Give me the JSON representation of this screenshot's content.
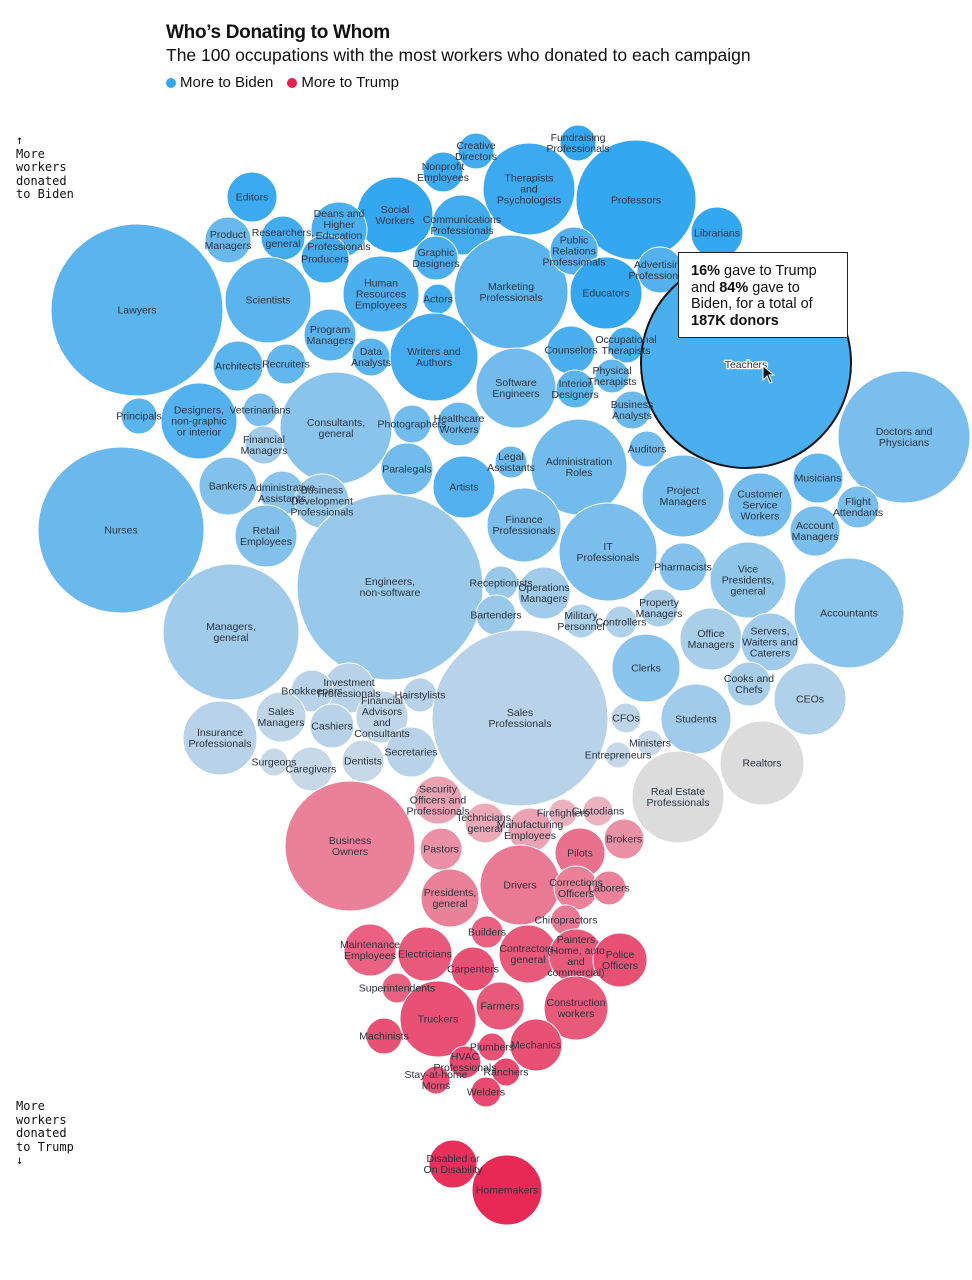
{
  "title": "Who’s Donating to Whom",
  "subtitle": "The 100 occupations with the most workers who donated to each campaign",
  "legend": {
    "biden_label": "More to Biden",
    "trump_label": "More to Trump",
    "biden_color": "#33a7f0",
    "trump_color": "#e8204f"
  },
  "axis": {
    "top_arrow": "↑",
    "top_label": "More\nworkers\ndonated\nto Biden",
    "bottom_label": "More\nworkers\ndonated\nto Trump",
    "bottom_arrow": "↓"
  },
  "tooltip": {
    "trump_pct": "16%",
    "trump_text": " gave to Trump",
    "and_text": "and ",
    "biden_pct": "84%",
    "biden_text": " gave to Biden, for a total of ",
    "total": "187K donors"
  },
  "chart_data": {
    "type": "bubble",
    "title": "Who’s Donating to Whom",
    "subtitle": "The 100 occupations with the most workers who donated to each campaign",
    "highlighted": "Teachers",
    "highlight_detail": {
      "trump_share": 16,
      "biden_share": 84,
      "total_donors": "187K"
    },
    "bubbles": [
      {
        "name": "Lawyers",
        "lean": "biden",
        "level": 0.75
      },
      {
        "name": "Nurses",
        "lean": "biden",
        "level": 0.65
      },
      {
        "name": "Teachers",
        "lean": "biden",
        "level": 0.85
      },
      {
        "name": "Professors",
        "lean": "biden",
        "level": 1.0
      },
      {
        "name": "Therapists and Psychologists",
        "lean": "biden",
        "level": 0.95
      },
      {
        "name": "Fundraising Professionals",
        "lean": "biden",
        "level": 1.0
      },
      {
        "name": "Creative Directors",
        "lean": "biden",
        "level": 0.9
      },
      {
        "name": "Nonprofit Employees",
        "lean": "biden",
        "level": 0.95
      },
      {
        "name": "Social Workers",
        "lean": "biden",
        "level": 1.0
      },
      {
        "name": "Editors",
        "lean": "biden",
        "level": 0.95
      },
      {
        "name": "Librarians",
        "lean": "biden",
        "level": 1.0
      },
      {
        "name": "Communications Professionals",
        "lean": "biden",
        "level": 0.9
      },
      {
        "name": "Deans and Higher Education Professionals",
        "lean": "biden",
        "level": 0.85
      },
      {
        "name": "Product Managers",
        "lean": "biden",
        "level": 0.65
      },
      {
        "name": "Researchers, general",
        "lean": "biden",
        "level": 0.9
      },
      {
        "name": "Producers",
        "lean": "biden",
        "level": 0.9
      },
      {
        "name": "Marketing Professionals",
        "lean": "biden",
        "level": 0.75
      },
      {
        "name": "Public Relations Professionals",
        "lean": "biden",
        "level": 0.8
      },
      {
        "name": "Educators",
        "lean": "biden",
        "level": 1.0
      },
      {
        "name": "Advertising Professionals",
        "lean": "biden",
        "level": 0.8
      },
      {
        "name": "Human Resources Employees",
        "lean": "biden",
        "level": 0.85
      },
      {
        "name": "Graphic Designers",
        "lean": "biden",
        "level": 0.85
      },
      {
        "name": "Scientists",
        "lean": "biden",
        "level": 0.75
      },
      {
        "name": "Actors",
        "lean": "biden",
        "level": 0.9
      },
      {
        "name": "Program Managers",
        "lean": "biden",
        "level": 0.75
      },
      {
        "name": "Writers and Authors",
        "lean": "biden",
        "level": 0.9
      },
      {
        "name": "Counselors",
        "lean": "biden",
        "level": 0.85
      },
      {
        "name": "Occupational Therapists",
        "lean": "biden",
        "level": 0.85
      },
      {
        "name": "Architects",
        "lean": "biden",
        "level": 0.75
      },
      {
        "name": "Recruiters",
        "lean": "biden",
        "level": 0.7
      },
      {
        "name": "Data Analysts",
        "lean": "biden",
        "level": 0.75
      },
      {
        "name": "Software Engineers",
        "lean": "biden",
        "level": 0.6
      },
      {
        "name": "Interior Designers",
        "lean": "biden",
        "level": 0.75
      },
      {
        "name": "Physical Therapists",
        "lean": "biden",
        "level": 0.7
      },
      {
        "name": "Principals",
        "lean": "biden",
        "level": 0.75
      },
      {
        "name": "Designers, non-graphic or interior",
        "lean": "biden",
        "level": 0.8
      },
      {
        "name": "Veterinarians",
        "lean": "biden",
        "level": 0.55
      },
      {
        "name": "Consultants, general",
        "lean": "biden",
        "level": 0.45
      },
      {
        "name": "Photographers",
        "lean": "biden",
        "level": 0.6
      },
      {
        "name": "Healthcare Workers",
        "lean": "biden",
        "level": 0.65
      },
      {
        "name": "Business Analysts",
        "lean": "biden",
        "level": 0.65
      },
      {
        "name": "Doctors and Physicians",
        "lean": "biden",
        "level": 0.55
      },
      {
        "name": "Financial Managers",
        "lean": "biden",
        "level": 0.3
      },
      {
        "name": "Legal Assistants",
        "lean": "biden",
        "level": 0.65
      },
      {
        "name": "Administration Roles",
        "lean": "biden",
        "level": 0.6
      },
      {
        "name": "Auditors",
        "lean": "biden",
        "level": 0.6
      },
      {
        "name": "Bankers",
        "lean": "biden",
        "level": 0.5
      },
      {
        "name": "Administrative Assistants",
        "lean": "biden",
        "level": 0.45
      },
      {
        "name": "Business Development Professionals",
        "lean": "biden",
        "level": 0.35
      },
      {
        "name": "Paralegals",
        "lean": "biden",
        "level": 0.6
      },
      {
        "name": "Artists",
        "lean": "biden",
        "level": 0.8
      },
      {
        "name": "Project Managers",
        "lean": "biden",
        "level": 0.6
      },
      {
        "name": "Customer Service Workers",
        "lean": "biden",
        "level": 0.6
      },
      {
        "name": "Musicians",
        "lean": "biden",
        "level": 0.7
      },
      {
        "name": "Flight Attendants",
        "lean": "biden",
        "level": 0.55
      },
      {
        "name": "Account Managers",
        "lean": "biden",
        "level": 0.55
      },
      {
        "name": "Retail Employees",
        "lean": "biden",
        "level": 0.5
      },
      {
        "name": "Finance Professionals",
        "lean": "biden",
        "level": 0.55
      },
      {
        "name": "IT Professionals",
        "lean": "biden",
        "level": 0.55
      },
      {
        "name": "Pharmacists",
        "lean": "biden",
        "level": 0.5
      },
      {
        "name": "Vice Presidents, general",
        "lean": "biden",
        "level": 0.4
      },
      {
        "name": "Engineers, non-software",
        "lean": "biden",
        "level": 0.35
      },
      {
        "name": "Receptionists",
        "lean": "biden",
        "level": 0.35
      },
      {
        "name": "Operations Managers",
        "lean": "biden",
        "level": 0.3
      },
      {
        "name": "Accountants",
        "lean": "biden",
        "level": 0.45
      },
      {
        "name": "Managers, general",
        "lean": "biden",
        "level": 0.3
      },
      {
        "name": "Bartenders",
        "lean": "biden",
        "level": 0.35
      },
      {
        "name": "Military Personnel",
        "lean": "biden",
        "level": 0.2
      },
      {
        "name": "Controllers",
        "lean": "biden",
        "level": 0.2
      },
      {
        "name": "Property Managers",
        "lean": "biden",
        "level": 0.25
      },
      {
        "name": "Office Managers",
        "lean": "biden",
        "level": 0.25
      },
      {
        "name": "Servers, Waiters and Caterers",
        "lean": "biden",
        "level": 0.3
      },
      {
        "name": "Clerks",
        "lean": "biden",
        "level": 0.45
      },
      {
        "name": "Investment Professionals",
        "lean": "biden",
        "level": 0.15
      },
      {
        "name": "Bookkeepers",
        "lean": "biden",
        "level": 0.15
      },
      {
        "name": "Hairstylists",
        "lean": "biden",
        "level": 0.15
      },
      {
        "name": "Sales Professionals",
        "lean": "biden",
        "level": 0.15
      },
      {
        "name": "Cooks and Chefs",
        "lean": "biden",
        "level": 0.25
      },
      {
        "name": "CEOs",
        "lean": "biden",
        "level": 0.2
      },
      {
        "name": "Sales Managers",
        "lean": "biden",
        "level": 0.1
      },
      {
        "name": "Financial Advisors and Consultants",
        "lean": "biden",
        "level": 0.1
      },
      {
        "name": "Cashiers",
        "lean": "biden",
        "level": 0.15
      },
      {
        "name": "Insurance Professionals",
        "lean": "biden",
        "level": 0.15
      },
      {
        "name": "CFOs",
        "lean": "biden",
        "level": 0.1
      },
      {
        "name": "Students",
        "lean": "biden",
        "level": 0.3
      },
      {
        "name": "Ministers",
        "lean": "biden",
        "level": 0.05
      },
      {
        "name": "Entrepreneurs",
        "lean": "biden",
        "level": 0.05
      },
      {
        "name": "Secretaries",
        "lean": "biden",
        "level": 0.15
      },
      {
        "name": "Dentists",
        "lean": "biden",
        "level": 0.05
      },
      {
        "name": "Surgeons",
        "lean": "biden",
        "level": 0.05
      },
      {
        "name": "Caregivers",
        "lean": "biden",
        "level": 0.05
      },
      {
        "name": "Realtors",
        "lean": "neutral",
        "level": 0.0
      },
      {
        "name": "Real Estate Professionals",
        "lean": "neutral",
        "level": 0.0
      },
      {
        "name": "Security Officers and Professionals",
        "lean": "trump",
        "level": 0.2
      },
      {
        "name": "Firefighters",
        "lean": "trump",
        "level": 0.1
      },
      {
        "name": "Custodians",
        "lean": "trump",
        "level": 0.1
      },
      {
        "name": "Technicians, general",
        "lean": "trump",
        "level": 0.15
      },
      {
        "name": "Manufacturing Employees",
        "lean": "trump",
        "level": 0.2
      },
      {
        "name": "Business Owners",
        "lean": "trump",
        "level": 0.4
      },
      {
        "name": "Pastors",
        "lean": "trump",
        "level": 0.3
      },
      {
        "name": "Brokers",
        "lean": "trump",
        "level": 0.3
      },
      {
        "name": "Pilots",
        "lean": "trump",
        "level": 0.5
      },
      {
        "name": "Drivers",
        "lean": "trump",
        "level": 0.45
      },
      {
        "name": "Corrections Officers",
        "lean": "trump",
        "level": 0.4
      },
      {
        "name": "Laborers",
        "lean": "trump",
        "level": 0.4
      },
      {
        "name": "Presidents, general",
        "lean": "trump",
        "level": 0.4
      },
      {
        "name": "Chiropractors",
        "lean": "trump",
        "level": 0.45
      },
      {
        "name": "Builders",
        "lean": "trump",
        "level": 0.6
      },
      {
        "name": "Maintenance Employees",
        "lean": "trump",
        "level": 0.6
      },
      {
        "name": "Electricians",
        "lean": "trump",
        "level": 0.65
      },
      {
        "name": "Contractors, general",
        "lean": "trump",
        "level": 0.65
      },
      {
        "name": "Painters (Home, auto and commercial)",
        "lean": "trump",
        "level": 0.65
      },
      {
        "name": "Police Officers",
        "lean": "trump",
        "level": 0.7
      },
      {
        "name": "Carpenters",
        "lean": "trump",
        "level": 0.7
      },
      {
        "name": "Superintendents",
        "lean": "trump",
        "level": 0.6
      },
      {
        "name": "Farmers",
        "lean": "trump",
        "level": 0.65
      },
      {
        "name": "Construction workers",
        "lean": "trump",
        "level": 0.65
      },
      {
        "name": "Truckers",
        "lean": "trump",
        "level": 0.7
      },
      {
        "name": "Machinists",
        "lean": "trump",
        "level": 0.7
      },
      {
        "name": "Plumbers",
        "lean": "trump",
        "level": 0.7
      },
      {
        "name": "Mechanics",
        "lean": "trump",
        "level": 0.7
      },
      {
        "name": "HVAC Professionals",
        "lean": "trump",
        "level": 0.75
      },
      {
        "name": "Stay-at-home Moms",
        "lean": "trump",
        "level": 0.7
      },
      {
        "name": "Ranchers",
        "lean": "trump",
        "level": 0.75
      },
      {
        "name": "Welders",
        "lean": "trump",
        "level": 0.75
      },
      {
        "name": "Disabled or On Disability",
        "lean": "trump",
        "level": 0.9
      },
      {
        "name": "Homemakers",
        "lean": "trump",
        "level": 0.95
      }
    ]
  }
}
